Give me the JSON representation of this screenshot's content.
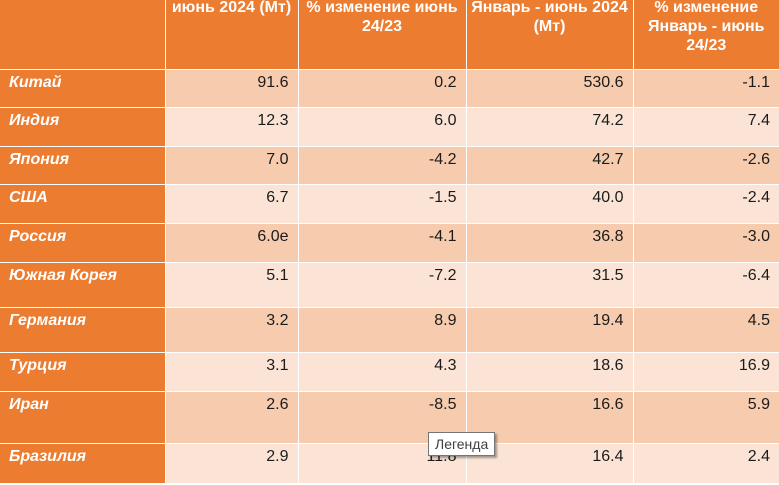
{
  "table": {
    "headers": [
      "",
      "июнь 2024 (Мт)",
      "% изменение июнь 24/23",
      "Январь - июнь 2024 (Мт)",
      "% изменение Январь - июнь 24/23"
    ],
    "rows": [
      [
        "Китай",
        "91.6",
        "0.2",
        "530.6",
        "-1.1"
      ],
      [
        "Индия",
        "12.3",
        "6.0",
        "74.2",
        "7.4"
      ],
      [
        "Япония",
        "7.0",
        "-4.2",
        "42.7",
        "-2.6"
      ],
      [
        "США",
        "6.7",
        "-1.5",
        "40.0",
        "-2.4"
      ],
      [
        "Россия",
        "6.0e",
        "-4.1",
        "36.8",
        "-3.0"
      ],
      [
        "Южная Корея",
        "5.1",
        "-7.2",
        "31.5",
        "-6.4"
      ],
      [
        "Германия",
        "3.2",
        "8.9",
        "19.4",
        "4.5"
      ],
      [
        "Турция",
        "3.1",
        "4.3",
        "18.6",
        "16.9"
      ],
      [
        "Иран",
        "2.6",
        "-8.5",
        "16.6",
        "5.9"
      ],
      [
        "Бразилия",
        "2.9",
        "11.8",
        "16.4",
        "2.4"
      ]
    ]
  },
  "tooltip": {
    "label": "Легенда"
  },
  "colors": {
    "header_bg": "#ec7c30",
    "row_odd_bg": "#f7cbad",
    "row_even_bg": "#fbe4d6"
  }
}
